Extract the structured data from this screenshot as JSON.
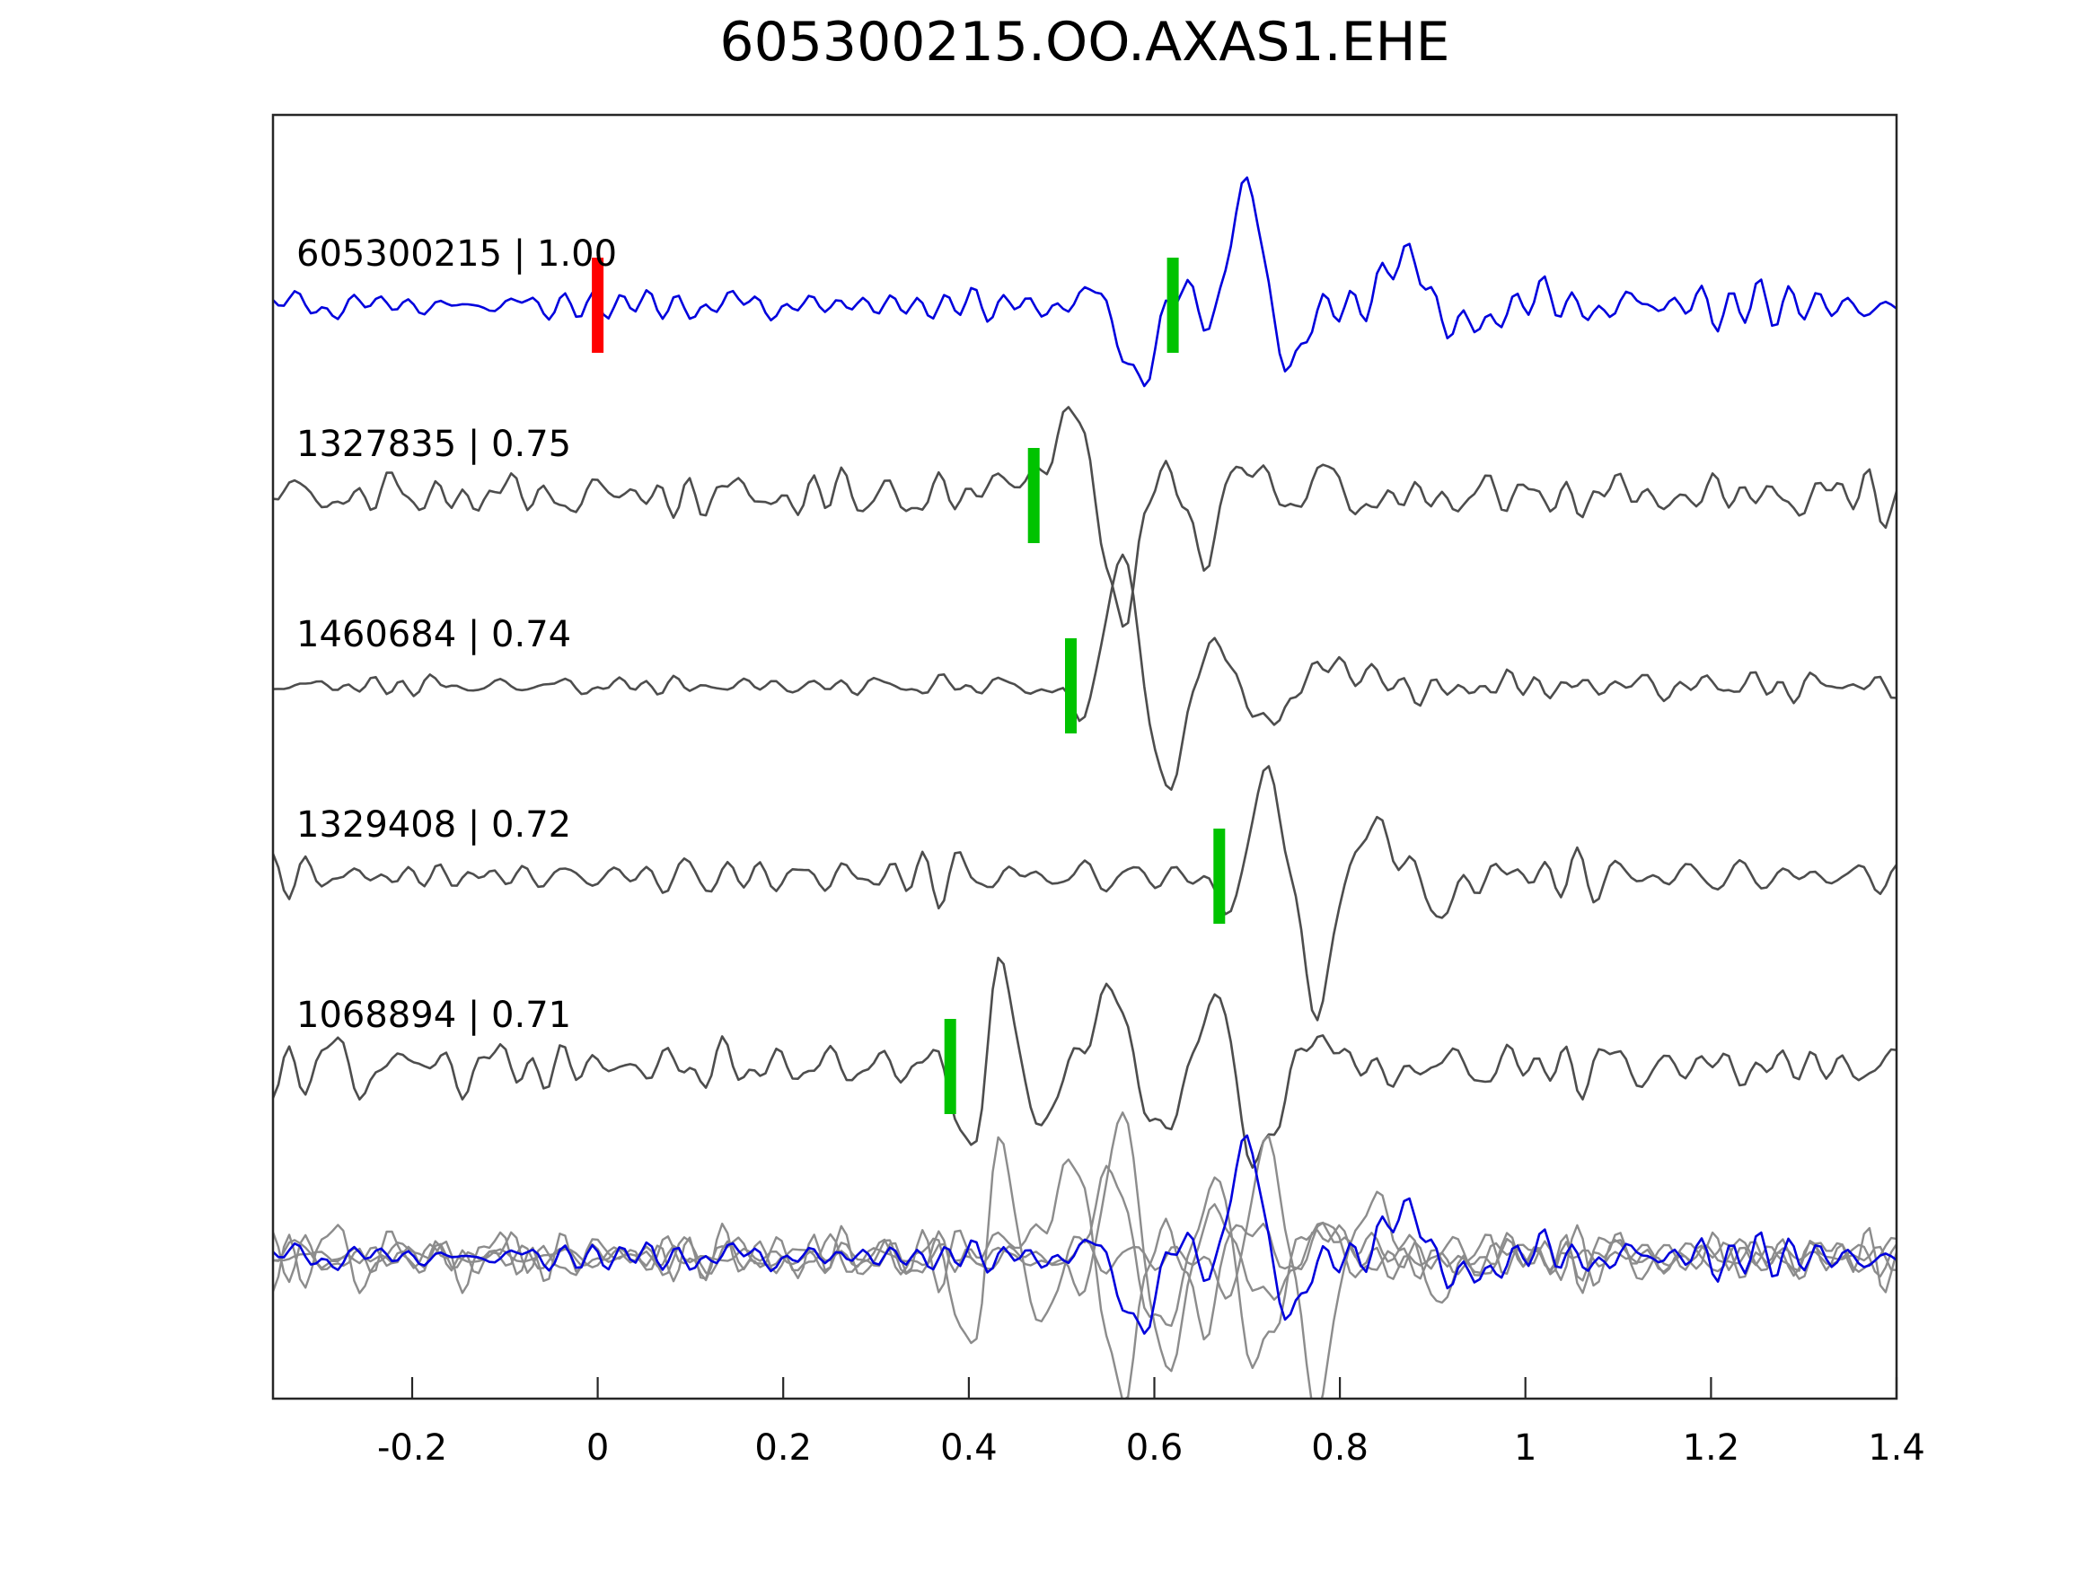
{
  "chart_data": {
    "type": "line",
    "title": "605300215.OO.AXAS1.EHE",
    "description": "Seismic waveform template-matching figure: target trace, four matched template traces with pick markers, and an overlay of all traces at the bottom.",
    "axis": {
      "xmin": -0.35,
      "xmax": 1.4,
      "ticks": [
        -0.2,
        0,
        0.2,
        0.4,
        0.6,
        0.8,
        1,
        1.2,
        1.4
      ],
      "tick_labels": [
        "-0.2",
        "0",
        "0.2",
        "0.4",
        "0.6",
        "0.8",
        "1",
        "1.2",
        "1.4"
      ],
      "grid": false,
      "y_axis_labels": "none"
    },
    "colors": {
      "target": "#0000dd",
      "template": "#4d4d4d",
      "overlay_gray": "#8c8c8c",
      "pick_green": "#00c300",
      "pick_red": "#ff0000",
      "axis": "#262626",
      "text": "#000000"
    },
    "traces": [
      {
        "id": "605300215",
        "cc": "1.00",
        "label": "605300215 | 1.00",
        "role": "target",
        "row": 0,
        "seed": 3,
        "picks": [
          {
            "t": 0.0,
            "color": "red"
          },
          {
            "t": 0.62,
            "color": "green"
          }
        ],
        "noise_env": [
          [
            -0.35,
            12
          ],
          [
            0.5,
            13
          ],
          [
            0.75,
            16
          ],
          [
            1.4,
            21
          ]
        ],
        "events": [
          {
            "t": 0.56,
            "a": -28,
            "f": 9,
            "w": 0.03
          },
          {
            "t": 0.585,
            "a": -75,
            "f": 9,
            "w": 0.038
          },
          {
            "t": 0.645,
            "a": 18,
            "f": 10,
            "w": 0.025
          },
          {
            "t": 0.665,
            "a": -30,
            "f": 10,
            "w": 0.028
          },
          {
            "t": 0.698,
            "a": 118,
            "f": 6.5,
            "w": 0.05
          },
          {
            "t": 0.742,
            "a": -52,
            "f": 8,
            "w": 0.04
          },
          {
            "t": 0.868,
            "a": 50,
            "f": 5.5,
            "w": 0.055
          },
          {
            "t": 0.93,
            "a": -24,
            "f": 6,
            "w": 0.05
          }
        ]
      },
      {
        "id": "1327835",
        "cc": "0.75",
        "label": "1327835 | 0.75",
        "role": "template",
        "row": 1,
        "seed": 7,
        "picks": [
          {
            "t": 0.47,
            "color": "green"
          }
        ],
        "noise_env": [
          [
            -0.35,
            19
          ],
          [
            0.7,
            22
          ],
          [
            1.4,
            19
          ]
        ],
        "events": [
          {
            "t": 0.445,
            "a": 42,
            "f": 7,
            "w": 0.045
          },
          {
            "t": 0.515,
            "a": 95,
            "f": 6,
            "w": 0.048
          },
          {
            "t": 0.562,
            "a": -118,
            "f": 5.5,
            "w": 0.045
          },
          {
            "t": 0.602,
            "a": 28,
            "f": 8,
            "w": 0.04
          },
          {
            "t": 0.648,
            "a": -42,
            "f": 7,
            "w": 0.045
          },
          {
            "t": 0.7,
            "a": 45,
            "f": 8,
            "w": 0.06
          },
          {
            "t": 0.78,
            "a": 30,
            "f": 7,
            "w": 0.08
          }
        ]
      },
      {
        "id": "1460684",
        "cc": "0.74",
        "label": "1460684 | 0.74",
        "role": "template",
        "row": 2,
        "seed": 5,
        "picks": [
          {
            "t": 0.51,
            "color": "green"
          }
        ],
        "noise_env": [
          [
            -0.35,
            7
          ],
          [
            0.45,
            8
          ],
          [
            0.6,
            10
          ],
          [
            0.75,
            13
          ],
          [
            1.4,
            14
          ]
        ],
        "events": [
          {
            "t": 0.532,
            "a": -36,
            "f": 7,
            "w": 0.033
          },
          {
            "t": 0.566,
            "a": 142,
            "f": 6,
            "w": 0.044
          },
          {
            "t": 0.614,
            "a": -98,
            "f": 5,
            "w": 0.05
          },
          {
            "t": 0.66,
            "a": 52,
            "f": 6,
            "w": 0.05
          },
          {
            "t": 0.72,
            "a": -28,
            "f": 5,
            "w": 0.06
          },
          {
            "t": 0.8,
            "a": 20,
            "f": 4.5,
            "w": 0.09
          }
        ]
      },
      {
        "id": "1329408",
        "cc": "0.72",
        "label": "1329408 | 0.72",
        "role": "template",
        "row": 3,
        "seed": 9,
        "picks": [
          {
            "t": 0.67,
            "color": "green"
          }
        ],
        "noise_env": [
          [
            -0.35,
            17
          ],
          [
            1.4,
            17
          ]
        ],
        "events": [
          {
            "t": 0.688,
            "a": -32,
            "f": 9,
            "w": 0.028
          },
          {
            "t": 0.727,
            "a": 120,
            "f": 6.5,
            "w": 0.044
          },
          {
            "t": 0.769,
            "a": -112,
            "f": 5.5,
            "w": 0.048
          },
          {
            "t": 0.84,
            "a": 40,
            "f": 6,
            "w": 0.07
          },
          {
            "t": 0.91,
            "a": -20,
            "f": 6,
            "w": 0.06
          }
        ]
      },
      {
        "id": "1068894",
        "cc": "0.71",
        "label": "1068894 | 0.71",
        "role": "template",
        "row": 4,
        "seed": 13,
        "picks": [
          {
            "t": 0.38,
            "color": "green"
          }
        ],
        "noise_env": [
          [
            -0.35,
            24
          ],
          [
            1.4,
            21
          ]
        ],
        "events": [
          {
            "t": 0.408,
            "a": -112,
            "f": 7,
            "w": 0.033
          },
          {
            "t": 0.432,
            "a": 138,
            "f": 7.5,
            "w": 0.034
          },
          {
            "t": 0.468,
            "a": -55,
            "f": 8,
            "w": 0.04
          },
          {
            "t": 0.548,
            "a": 58,
            "f": 6.5,
            "w": 0.055
          },
          {
            "t": 0.612,
            "a": -40,
            "f": 7,
            "w": 0.05
          },
          {
            "t": 0.67,
            "a": 52,
            "f": 7,
            "w": 0.05
          },
          {
            "t": 0.714,
            "a": -88,
            "f": 6,
            "w": 0.042
          },
          {
            "t": 0.78,
            "a": 32,
            "f": 7,
            "w": 0.06
          }
        ]
      }
    ],
    "overlay": {
      "row": 5,
      "members": [
        {
          "trace": 1,
          "scale": 1.1
        },
        {
          "trace": 2,
          "scale": 1.1
        },
        {
          "trace": 3,
          "scale": 1.1
        },
        {
          "trace": 4,
          "scale": 1.1
        },
        {
          "trace": 0,
          "scale": 0.95
        }
      ]
    }
  }
}
